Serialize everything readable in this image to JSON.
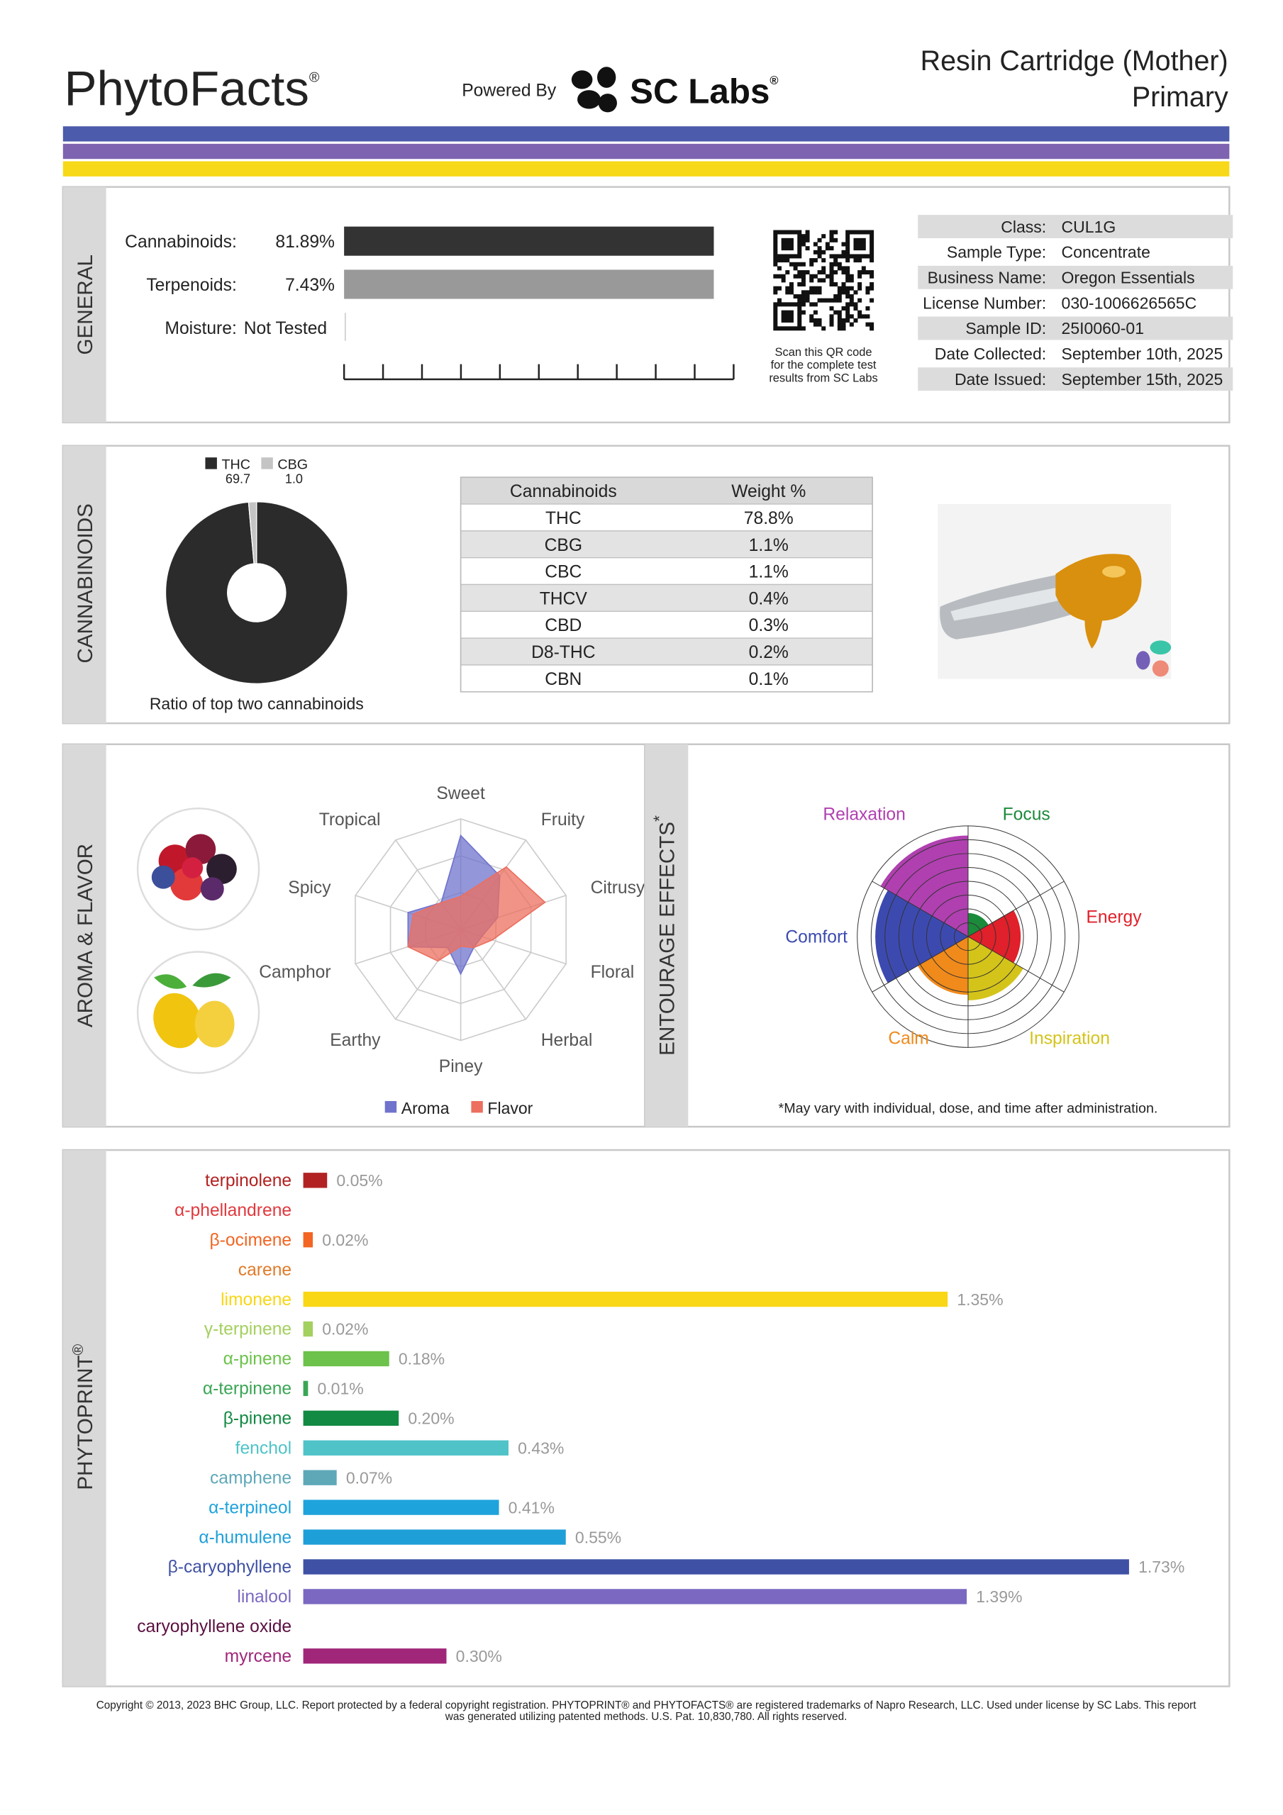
{
  "header": {
    "title": "PhytoFacts",
    "trademark": "®",
    "powered_by": "Powered By",
    "lab": "SC Labs",
    "lab_trademark": "®",
    "product": "Resin Cartridge (Mother)",
    "subtitle": "Primary"
  },
  "general": {
    "section": "GENERAL",
    "cannabinoids": {
      "label": "Cannabinoids:",
      "value": "81.89%"
    },
    "terpenoids": {
      "label": "Terpenoids:",
      "value": "7.43%"
    },
    "moisture": {
      "label": "Moisture:",
      "value": "Not Tested"
    },
    "qr_caption": [
      "Scan this QR code",
      "for the complete test",
      "results from SC Labs"
    ],
    "info": [
      [
        "Class:",
        "CUL1G"
      ],
      [
        "Sample Type:",
        "Concentrate"
      ],
      [
        "Business Name:",
        "Oregon Essentials"
      ],
      [
        "License Number:",
        "030-1006626565C"
      ],
      [
        "Sample ID:",
        "25I0060-01"
      ],
      [
        "Date Collected:",
        "September 10th, 2025"
      ],
      [
        "Date Issued:",
        "September 15th, 2025"
      ]
    ]
  },
  "cannabinoids": {
    "section": "CANNABINOIDS",
    "pie": {
      "series": [
        {
          "name": "THC",
          "value": 69.7,
          "color": "#2b2b2b"
        },
        {
          "name": "CBG",
          "value": 1.0,
          "value_label": "1.0",
          "color": "#c4c4c4"
        }
      ],
      "caption": "Ratio of top two cannabinoids"
    },
    "table": {
      "header": [
        "Cannabinoids",
        "Weight %"
      ],
      "rows": [
        [
          "THC",
          "78.8%"
        ],
        [
          "CBG",
          "1.1%"
        ],
        [
          "CBC",
          "1.1%"
        ],
        [
          "THCV",
          "0.4%"
        ],
        [
          "CBD",
          "0.3%"
        ],
        [
          "D8-THC",
          "0.2%"
        ],
        [
          "CBN",
          "0.1%"
        ]
      ]
    }
  },
  "aroma_flavor": {
    "section": "AROMA & FLAVOR",
    "radar": {
      "axes": [
        "Sweet",
        "Fruity",
        "Citrusy",
        "Floral",
        "Herbal",
        "Piney",
        "Earthy",
        "Camphor",
        "Spicy",
        "Tropical"
      ],
      "rlim": [
        0,
        10
      ],
      "series": [
        {
          "name": "Aroma",
          "color": "#6f73cc",
          "values": [
            8.5,
            6,
            3.5,
            2,
            2,
            4,
            2,
            5,
            5,
            3
          ]
        },
        {
          "name": "Flavor",
          "color": "#ec6f5f",
          "values": [
            3,
            7,
            8,
            3,
            2,
            1.5,
            3.5,
            5,
            4.5,
            3
          ]
        }
      ]
    }
  },
  "effects": {
    "section": "ENTOURAGE EFFECTS",
    "asterisk": "*",
    "rlim": [
      0,
      8
    ],
    "categories": [
      "Focus",
      "Energy",
      "Inspiration",
      "Calm",
      "Comfort",
      "Relaxation"
    ],
    "colors": [
      "#1b8a3a",
      "#e0202a",
      "#d4c41a",
      "#f08a1a",
      "#3c4ab0",
      "#b040b0"
    ],
    "values": [
      1.7,
      3.8,
      4.6,
      4.2,
      6.7,
      7.3
    ],
    "footnote": "*May vary with individual, dose, and time after administration."
  },
  "phytoprint": {
    "section": "PHYTOPRINT",
    "mark": "®",
    "terpenes": [
      {
        "name": "terpinolene",
        "color": "#b22222",
        "value": 0.05,
        "value_label": "0.05%"
      },
      {
        "name": "α-phellandrene",
        "color": "#e0393e",
        "value": 0
      },
      {
        "name": "β-ocimene",
        "color": "#f26522",
        "value": 0.02,
        "value_label": "0.02%"
      },
      {
        "name": "carene",
        "color": "#e07b2a",
        "value": 0
      },
      {
        "name": "limonene",
        "color": "#f9d616",
        "value": 1.35,
        "value_label": "1.35%"
      },
      {
        "name": "γ-terpinene",
        "color": "#a4d05f",
        "value": 0.02,
        "value_label": "0.02%"
      },
      {
        "name": "α-pinene",
        "color": "#6cc24a",
        "value": 0.18,
        "value_label": "0.18%"
      },
      {
        "name": "α-terpinene",
        "color": "#3aa655",
        "value": 0.01,
        "value_label": "0.01%"
      },
      {
        "name": "β-pinene",
        "color": "#138a43",
        "value": 0.2,
        "value_label": "0.20%"
      },
      {
        "name": "fenchol",
        "color": "#4fc3c8",
        "value": 0.43,
        "value_label": "0.43%"
      },
      {
        "name": "camphene",
        "color": "#5fa8b8",
        "value": 0.07,
        "value_label": "0.07%"
      },
      {
        "name": "α-terpineol",
        "color": "#1fa3dc",
        "value": 0.41,
        "value_label": "0.41%"
      },
      {
        "name": "α-humulene",
        "color": "#1f9fd8",
        "value": 0.55,
        "value_label": "0.55%"
      },
      {
        "name": "β-caryophyllene",
        "color": "#3f51a5",
        "value": 1.73,
        "value_label": "1.73%"
      },
      {
        "name": "linalool",
        "color": "#7b68c1",
        "value": 1.39,
        "value_label": "1.39%"
      },
      {
        "name": "caryophyllene oxide",
        "color": "#5a1040",
        "value": 0
      },
      {
        "name": "myrcene",
        "color": "#a0267a",
        "value": 0.3,
        "value_label": "0.30%"
      }
    ]
  },
  "footer": [
    "Copyright © 2013, 2023 BHC Group, LLC. Report protected by a federal copyright registration. PHYTOPRINT® and PHYTOFACTS® are registered trademarks of Napro Research, LLC. Used under license by SC Labs. This report",
    "was generated utilizing patented methods. U.S. Pat. 10,830,780. All rights reserved."
  ]
}
